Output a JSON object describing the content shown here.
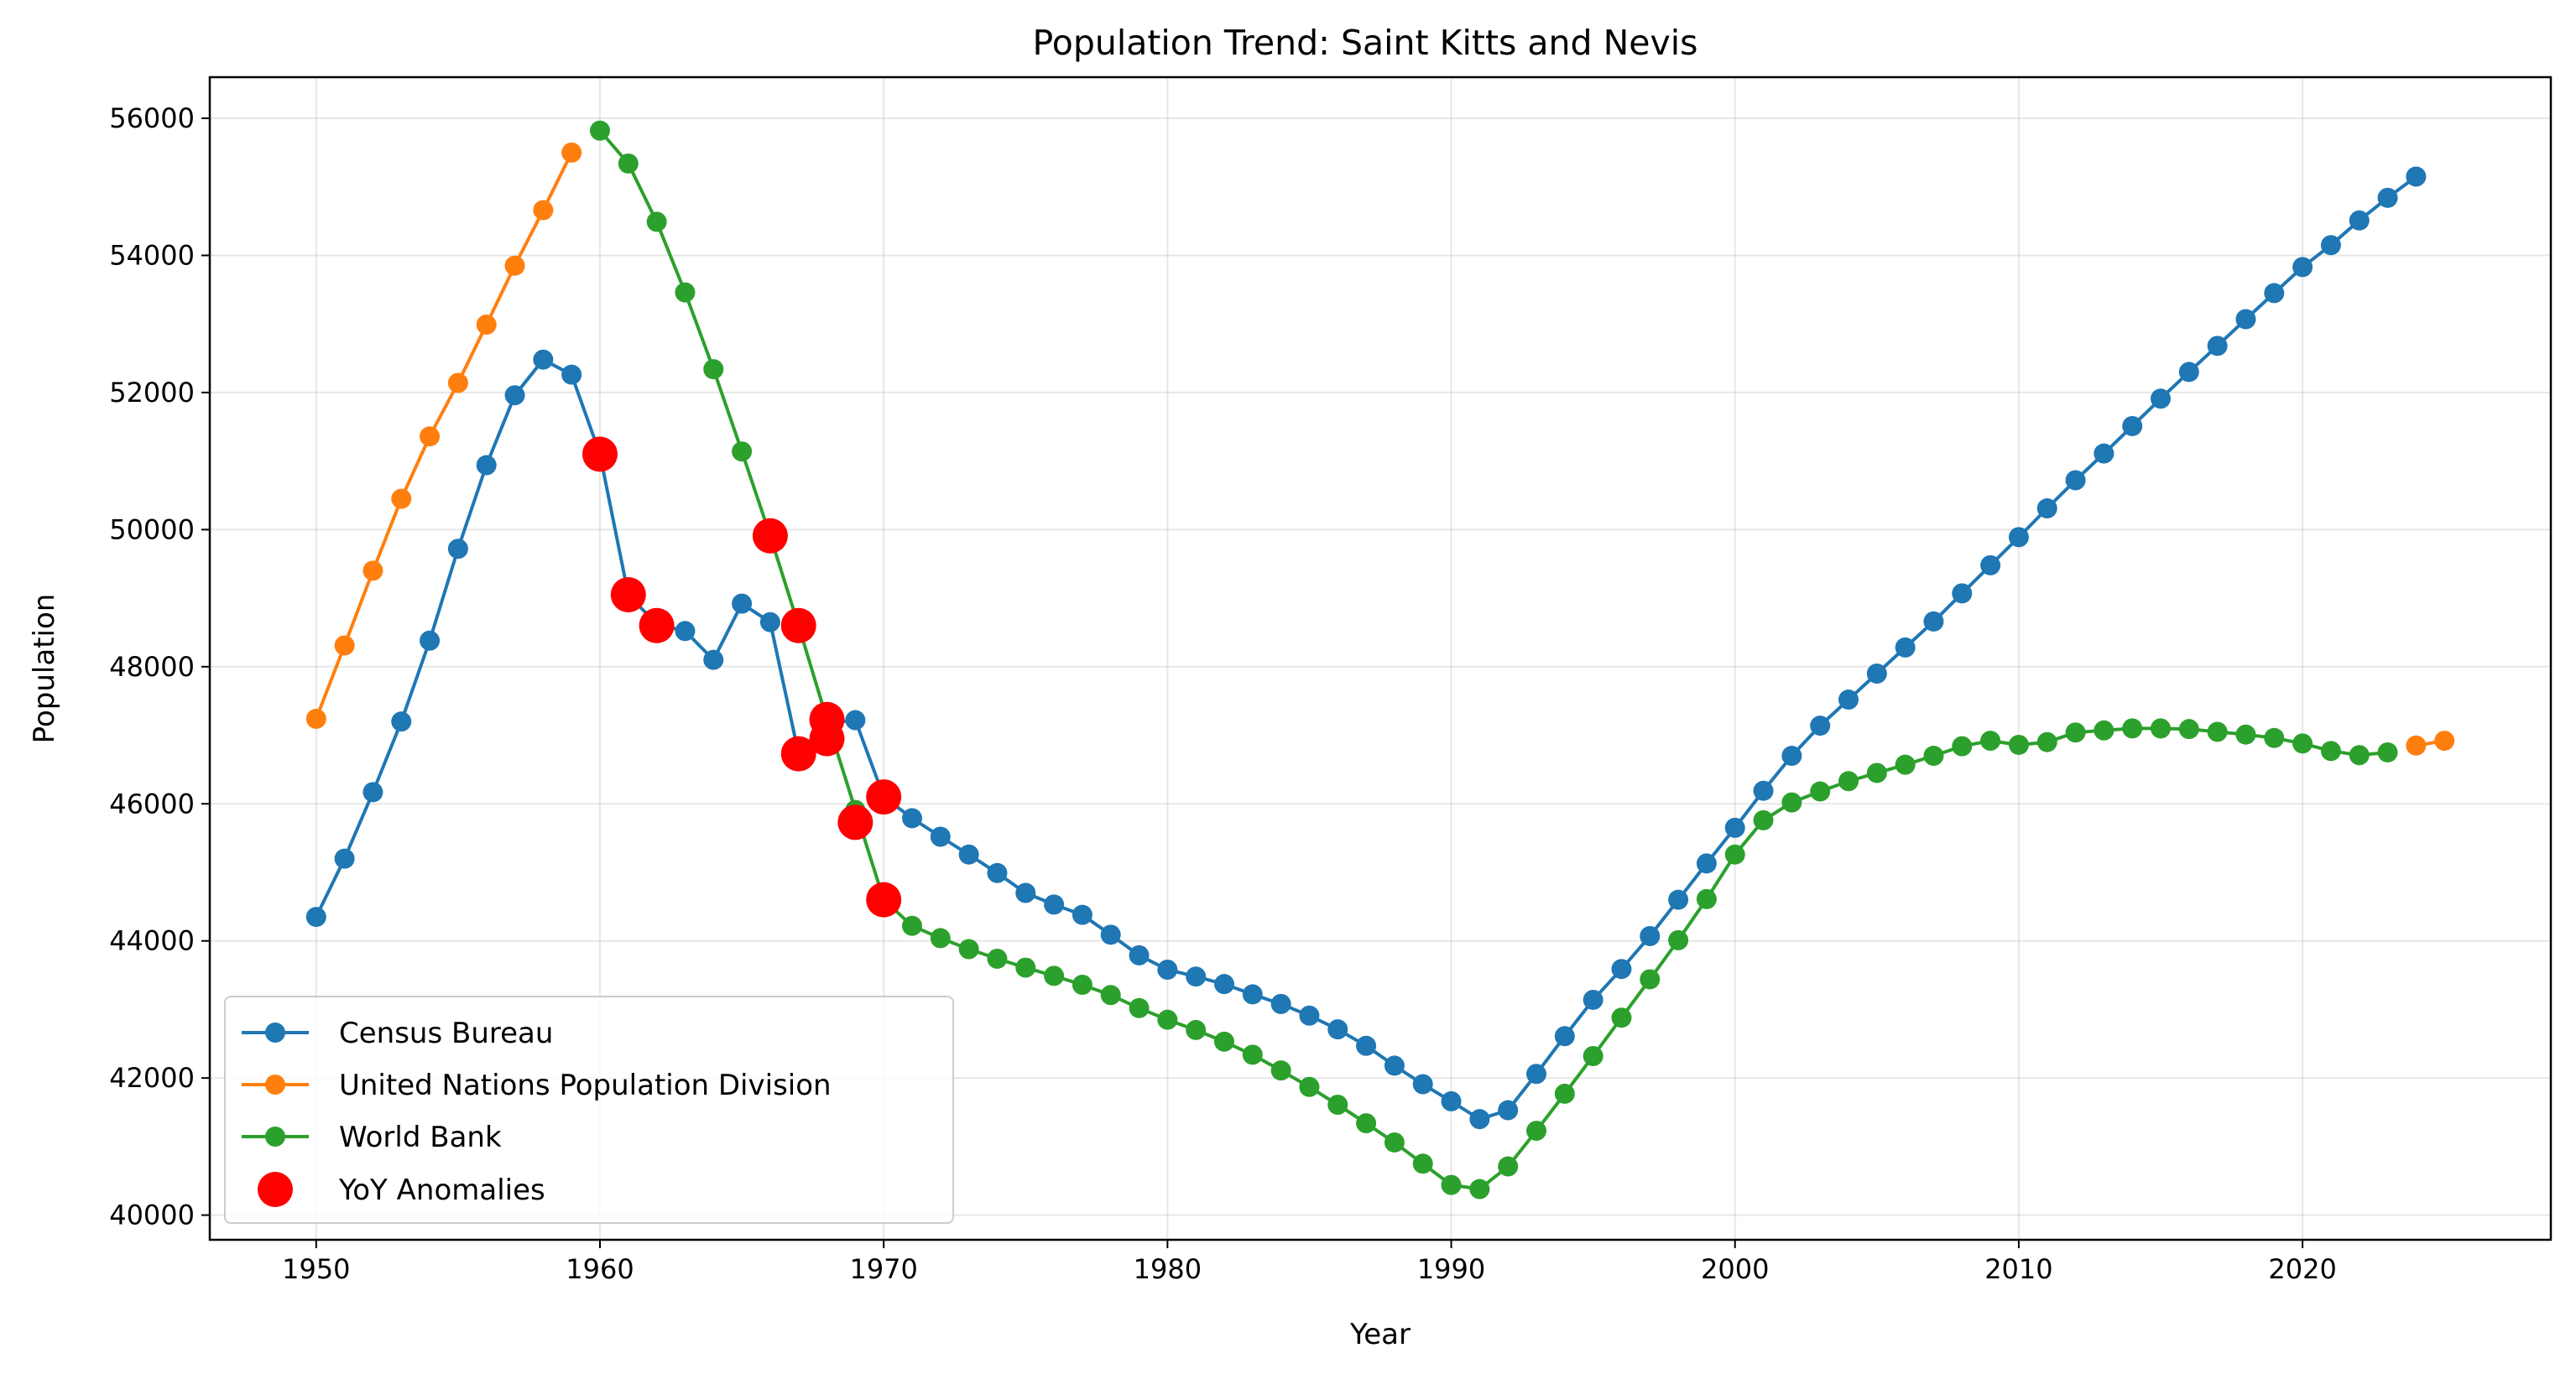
{
  "chart_data": {
    "type": "line",
    "title": "Population Trend: Saint Kitts and Nevis",
    "xlabel": "Year",
    "ylabel": "Population",
    "xlim": [
      1946.25,
      2028.75
    ],
    "ylim": [
      39640,
      56600
    ],
    "xticks": [
      1950,
      1960,
      1970,
      1980,
      1990,
      2000,
      2010,
      2020
    ],
    "xtick_labels": [
      "1950",
      "1960",
      "1970",
      "1980",
      "1990",
      "2000",
      "2010",
      "2020"
    ],
    "yticks": [
      40000,
      42000,
      44000,
      46000,
      48000,
      50000,
      52000,
      54000,
      56000
    ],
    "ytick_labels": [
      "40000",
      "42000",
      "44000",
      "46000",
      "48000",
      "50000",
      "52000",
      "54000",
      "56000"
    ],
    "grid": true,
    "legend_position": "lower-left",
    "series": [
      {
        "name": "Census Bureau",
        "color": "#1f77b4",
        "x": [
          1950,
          1951,
          1952,
          1953,
          1954,
          1955,
          1956,
          1957,
          1958,
          1959,
          1960,
          1961,
          1962,
          1963,
          1964,
          1965,
          1966,
          1967,
          1968,
          1969,
          1970,
          1971,
          1972,
          1973,
          1974,
          1975,
          1976,
          1977,
          1978,
          1979,
          1980,
          1981,
          1982,
          1983,
          1984,
          1985,
          1986,
          1987,
          1988,
          1989,
          1990,
          1991,
          1992,
          1993,
          1994,
          1995,
          1996,
          1997,
          1998,
          1999,
          2000,
          2001,
          2002,
          2003,
          2004,
          2005,
          2006,
          2007,
          2008,
          2009,
          2010,
          2011,
          2012,
          2013,
          2014,
          2015,
          2016,
          2017,
          2018,
          2019,
          2020,
          2021,
          2022,
          2023,
          2024
        ],
        "y": [
          44350,
          45200,
          46170,
          47200,
          48380,
          49720,
          50940,
          51960,
          52480,
          52260,
          51100,
          49050,
          48620,
          48520,
          48100,
          48920,
          48650,
          46730,
          47180,
          47220,
          46100,
          45790,
          45520,
          45260,
          44990,
          44700,
          44530,
          44380,
          44090,
          43790,
          43580,
          43480,
          43370,
          43220,
          43080,
          42910,
          42710,
          42470,
          42180,
          41910,
          41660,
          41400,
          41530,
          42060,
          42610,
          43140,
          43590,
          44070,
          44600,
          45130,
          45650,
          46190,
          46700,
          47140,
          47520,
          47900,
          48280,
          48660,
          49070,
          49480,
          49890,
          50310,
          50720,
          51110,
          51510,
          51910,
          52300,
          52680,
          53070,
          53450,
          53830,
          54150,
          54510,
          54840,
          55150
        ]
      },
      {
        "name": "United Nations Population Division",
        "color": "#ff7f0e",
        "x": [
          1950,
          1951,
          1952,
          1953,
          1954,
          1955,
          1956,
          1957,
          1958,
          1959,
          2024,
          2025
        ],
        "y": [
          47240,
          48310,
          49400,
          50450,
          51360,
          52140,
          52990,
          53850,
          54660,
          55500,
          46850,
          46920
        ]
      },
      {
        "name": "World Bank",
        "color": "#2ca02c",
        "x": [
          1960,
          1961,
          1962,
          1963,
          1964,
          1965,
          1966,
          1967,
          1968,
          1969,
          1970,
          1971,
          1972,
          1973,
          1974,
          1975,
          1976,
          1977,
          1978,
          1979,
          1980,
          1981,
          1982,
          1983,
          1984,
          1985,
          1986,
          1987,
          1988,
          1989,
          1990,
          1991,
          1992,
          1993,
          1994,
          1995,
          1996,
          1997,
          1998,
          1999,
          2000,
          2001,
          2002,
          2003,
          2004,
          2005,
          2006,
          2007,
          2008,
          2009,
          2010,
          2011,
          2012,
          2013,
          2014,
          2015,
          2016,
          2017,
          2018,
          2019,
          2020,
          2021,
          2022,
          2023
        ],
        "y": [
          55820,
          55340,
          54490,
          53460,
          52340,
          51140,
          49910,
          48600,
          47230,
          45910,
          44600,
          44220,
          44040,
          43880,
          43740,
          43610,
          43490,
          43360,
          43210,
          43020,
          42850,
          42700,
          42530,
          42340,
          42110,
          41870,
          41610,
          41340,
          41060,
          40750,
          40440,
          40380,
          40710,
          41230,
          41770,
          42320,
          42880,
          43440,
          44010,
          44610,
          45260,
          45760,
          46020,
          46180,
          46330,
          46450,
          46570,
          46700,
          46840,
          46920,
          46860,
          46900,
          47040,
          47070,
          47100,
          47100,
          47090,
          47050,
          47010,
          46960,
          46880,
          46770,
          46710,
          46750
        ]
      },
      {
        "name": "YoY Anomalies",
        "color": "#ff0000",
        "x": [
          1960,
          1961,
          1962,
          1966,
          1967,
          1967,
          1968,
          1968,
          1969,
          1970,
          1970
        ],
        "y": [
          51100,
          49050,
          48600,
          49910,
          48600,
          46730,
          47230,
          46950,
          45730,
          46100,
          44600
        ]
      }
    ]
  }
}
